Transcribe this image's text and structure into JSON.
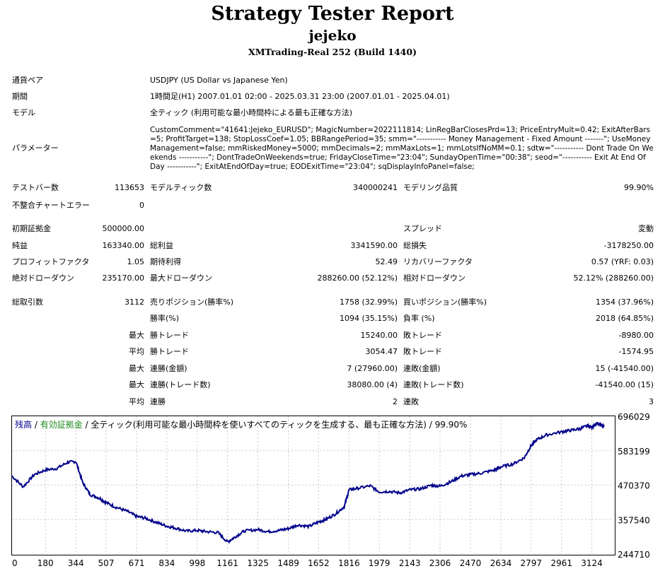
{
  "header": {
    "title": "Strategy Tester Report",
    "subtitle": "jejeko",
    "server": "XMTrading-Real 252 (Build 1440)"
  },
  "info": {
    "symbol_label": "通貨ペア",
    "symbol_value": "USDJPY (US Dollar vs Japanese Yen)",
    "period_label": "期間",
    "period_value": "1時間足(H1) 2007.01.01 02:00 - 2025.03.31 23:00 (2007.01.01 - 2025.04.01)",
    "model_label": "モデル",
    "model_value": "全ティック (利用可能な最小時間枠による最も正確な方法)",
    "params_label": "パラメーター",
    "params_value": "CustomComment=\"41641:Jejeko_EURUSD\"; MagicNumber=2022111814; LinRegBarClosesPrd=13; PriceEntryMult=0.42; ExitAfterBars=5; ProfitTarget=138; StopLossCoef=1.05; BBRangePeriod=35; smm=\"----------- Money Management - Fixed Amount -------\"; UseMoneyManagement=false; mmRiskedMoney=5000; mmDecimals=2; mmMaxLots=1; mmLotsIfNoMM=0.1; sdtw=\"----------- Dont Trade On Weekends -----------\"; DontTradeOnWeekends=true; FridayCloseTime=\"23:04\"; SundayOpenTime=\"00:38\"; seod=\"----------- Exit At End Of Day -----------\"; ExitAtEndOfDay=true; EODExitTime=\"23:04\"; sqDisplayInfoPanel=false;"
  },
  "stats": {
    "bars_label": "テストバー数",
    "bars_value": "113653",
    "ticks_label": "モデルティック数",
    "ticks_value": "340000241",
    "quality_label": "モデリング品質",
    "quality_value": "99.90%",
    "mismatch_label": "不整合チャートエラー",
    "mismatch_value": "0",
    "deposit_label": "初期証拠金",
    "deposit_value": "500000.00",
    "spread_label": "スプレッド",
    "spread_value": "変動",
    "netprofit_label": "純益",
    "netprofit_value": "163340.00",
    "grossprofit_label": "総利益",
    "grossprofit_value": "3341590.00",
    "grossloss_label": "総損失",
    "grossloss_value": "-3178250.00",
    "pf_label": "プロフィットファクタ",
    "pf_value": "1.05",
    "expected_label": "期待利得",
    "expected_value": "52.49",
    "recovery_label": "リカバリーファクタ",
    "recovery_value": "0.57 (YRF: 0.03)",
    "absdd_label": "絶対ドローダウン",
    "absdd_value": "235170.00",
    "maxdd_label": "最大ドローダウン",
    "maxdd_value": "288260.00 (52.12%)",
    "reldd_label": "相対ドローダウン",
    "reldd_value": "52.12% (288260.00)",
    "trades_label": "総取引数",
    "trades_value": "3112",
    "short_label": "売りポジション(勝率%)",
    "short_value": "1758 (32.99%)",
    "long_label": "買いポジション(勝率%)",
    "long_value": "1354 (37.96%)",
    "win_label": "勝率(%)",
    "win_value": "1094 (35.15%)",
    "loss_label": "負率 (%)",
    "loss_value": "2018 (64.85%)",
    "max_label": "最大",
    "avg_label": "平均",
    "bestwin_label": "勝トレード",
    "bestwin_value": "15240.00",
    "worstloss_label": "敗トレード",
    "worstloss_value": "-8980.00",
    "avgwin_label": "勝トレード",
    "avgwin_value": "3054.47",
    "avgloss_label": "敗トレード",
    "avgloss_value": "-1574.95",
    "maxconswin_label": "連勝(金額)",
    "maxconswin_value": "7 (27960.00)",
    "maxconsloss_label": "連敗(金額)",
    "maxconsloss_value": "15 (-41540.00)",
    "maxconswin2_label": "連勝(トレード数)",
    "maxconswin2_value": "38080.00 (4)",
    "maxconsloss2_label": "連敗(トレード数)",
    "maxconsloss2_value": "-41540.00 (15)",
    "avgconswin_label": "連勝",
    "avgconswin_value": "2",
    "avgconsloss_label": "連敗",
    "avgconsloss_value": "3"
  },
  "chart_legend": {
    "balance": "残高",
    "sep1": " / ",
    "equity": "有効証拠金",
    "sep2": " / ",
    "rest": "全ティック(利用可能な最小時間枠を使いすべてのティックを生成する、最も正確な方法) / 99.90%"
  },
  "chart_data": {
    "type": "line",
    "x_tick_labels": [
      "0",
      "180",
      "344",
      "507",
      "671",
      "834",
      "998",
      "1161",
      "1325",
      "1489",
      "1652",
      "1816",
      "1979",
      "2143",
      "2306",
      "2470",
      "2634",
      "2797",
      "2961",
      "3124"
    ],
    "y_tick_labels": [
      "696029",
      "583199",
      "470370",
      "357540",
      "244710"
    ],
    "ylim": [
      244710,
      696029
    ],
    "xlim": [
      0,
      3240
    ],
    "grid": true,
    "colors": {
      "balance": "#00008b",
      "grid": "#c8c8c8"
    },
    "series": [
      {
        "name": "残高",
        "x": [
          0,
          60,
          120,
          180,
          240,
          300,
          344,
          380,
          420,
          470,
          507,
          560,
          620,
          671,
          720,
          780,
          834,
          880,
          940,
          998,
          1050,
          1110,
          1161,
          1200,
          1250,
          1325,
          1380,
          1440,
          1489,
          1540,
          1600,
          1652,
          1690,
          1740,
          1790,
          1816,
          1860,
          1930,
          1979,
          2030,
          2090,
          2143,
          2200,
          2260,
          2306,
          2360,
          2420,
          2470,
          2530,
          2600,
          2634,
          2700,
          2760,
          2797,
          2830,
          2880,
          2961,
          3010,
          3060,
          3100,
          3124,
          3150,
          3190
        ],
        "y": [
          500000,
          465000,
          505000,
          520000,
          525000,
          545000,
          548000,
          480000,
          440000,
          428000,
          413000,
          398000,
          385000,
          368000,
          362000,
          348000,
          336000,
          330000,
          320000,
          322000,
          318000,
          315000,
          284000,
          300000,
          320000,
          325000,
          318000,
          322000,
          328000,
          340000,
          335000,
          350000,
          358000,
          375000,
          400000,
          455000,
          460000,
          468000,
          448000,
          450000,
          445000,
          455000,
          458000,
          470000,
          467000,
          480000,
          500000,
          505000,
          510000,
          520000,
          530000,
          540000,
          560000,
          600000,
          620000,
          635000,
          645000,
          650000,
          655000,
          665000,
          660000,
          672000,
          662000
        ]
      }
    ]
  }
}
